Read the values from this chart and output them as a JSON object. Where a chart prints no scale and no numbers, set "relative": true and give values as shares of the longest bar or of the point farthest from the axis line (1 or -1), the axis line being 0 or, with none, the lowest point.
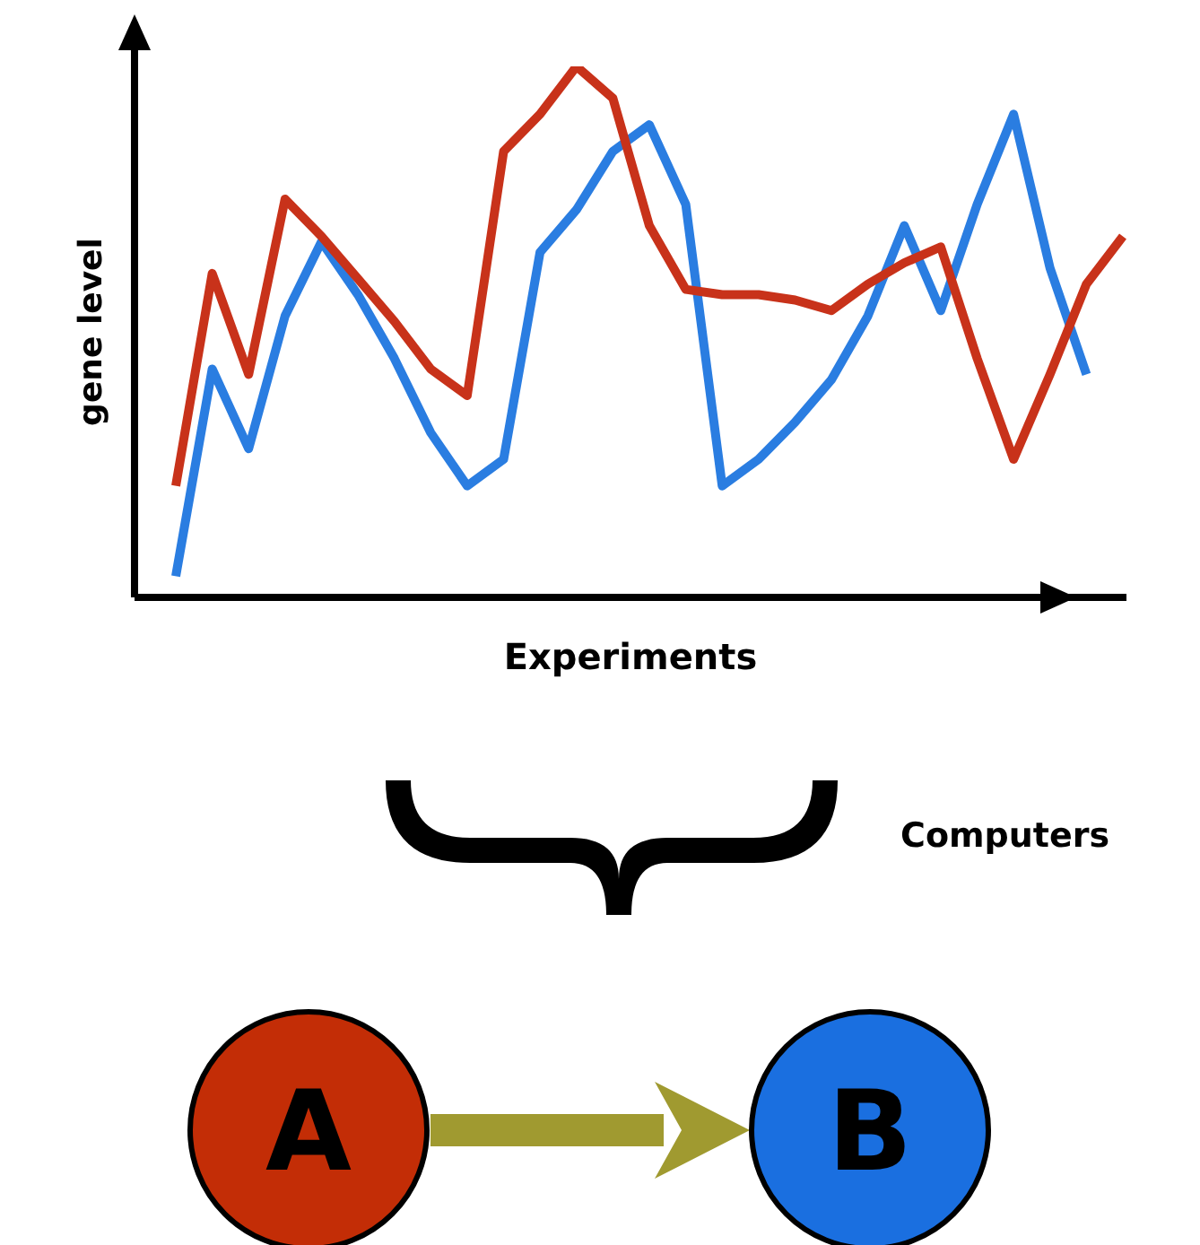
{
  "chart_data": {
    "type": "line",
    "relative": true,
    "xlabel": "Experiments",
    "ylabel": "gene level",
    "categories": [
      null,
      null,
      null,
      null,
      null,
      null,
      null,
      null,
      null,
      null,
      null,
      null,
      null,
      null,
      null,
      null,
      null,
      null,
      null,
      null,
      null,
      null,
      null,
      null,
      null,
      null,
      null
    ],
    "series": [
      {
        "color": "#2a7de1",
        "values": [
          0.04,
          0.43,
          0.28,
          0.53,
          0.67,
          0.57,
          0.45,
          0.31,
          0.21,
          0.26,
          0.65,
          0.73,
          0.84,
          0.89,
          0.74,
          0.21,
          0.26,
          0.33,
          0.41,
          0.53,
          0.7,
          0.54,
          0.74,
          0.91,
          0.62,
          0.42,
          null
        ]
      },
      {
        "color": "#c8321a",
        "values": [
          0.21,
          0.61,
          0.42,
          0.75,
          0.68,
          0.6,
          0.52,
          0.43,
          0.38,
          0.84,
          0.91,
          1,
          0.94,
          0.7,
          0.58,
          0.57,
          0.57,
          0.56,
          0.54,
          0.59,
          0.63,
          0.66,
          0.45,
          0.26,
          0.42,
          0.59,
          0.68
        ]
      }
    ],
    "grid": false,
    "legend": false,
    "marker": "none",
    "line_style": "solid",
    "annotations": [
      "Computers",
      "A",
      "B"
    ]
  }
}
